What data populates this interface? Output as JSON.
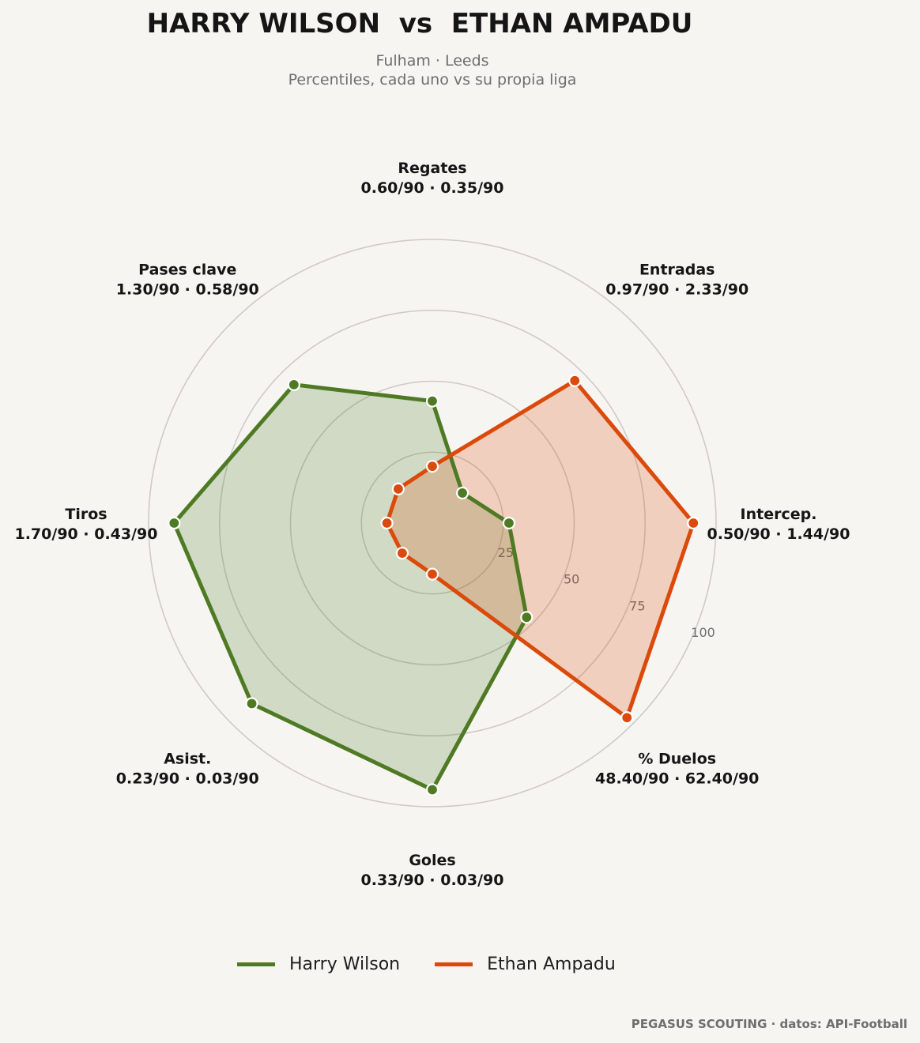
{
  "header": {
    "title": "HARRY WILSON  vs  ETHAN AMPADU",
    "subtitle_line1": "Fulham · Leeds",
    "subtitle_line2": "Percentiles, cada uno vs su propia liga"
  },
  "footer": {
    "credit": "PEGASUS SCOUTING · datos: API-Football"
  },
  "chart_data": {
    "type": "radar",
    "title": "HARRY WILSON  vs  ETHAN AMPADU",
    "rlim": [
      0,
      100
    ],
    "rings": [
      25,
      50,
      75,
      100
    ],
    "grid": true,
    "legend_position": "bottom-center",
    "axes": [
      {
        "label": "Regates",
        "values_text": "0.60/90 · 0.35/90"
      },
      {
        "label": "Entradas",
        "values_text": "0.97/90 · 2.33/90"
      },
      {
        "label": "Intercep.",
        "values_text": "0.50/90 · 1.44/90"
      },
      {
        "label": "% Duelos",
        "values_text": "48.40/90 · 62.40/90"
      },
      {
        "label": "Goles",
        "values_text": "0.33/90 · 0.03/90"
      },
      {
        "label": "Asist.",
        "values_text": "0.23/90 · 0.03/90"
      },
      {
        "label": "Tiros",
        "values_text": "1.70/90 · 0.43/90"
      },
      {
        "label": "Pases clave",
        "values_text": "1.30/90 · 0.58/90"
      }
    ],
    "series": [
      {
        "name": "Harry Wilson",
        "color": "#4f7a24",
        "fill": "#4f7a24",
        "values": [
          43,
          15,
          27,
          47,
          94,
          90,
          91,
          69
        ]
      },
      {
        "name": "Ethan Ampadu",
        "color": "#db4a0b",
        "fill": "#db4a0b",
        "values": [
          20,
          71,
          92,
          97,
          18,
          15,
          16,
          17
        ]
      }
    ]
  }
}
